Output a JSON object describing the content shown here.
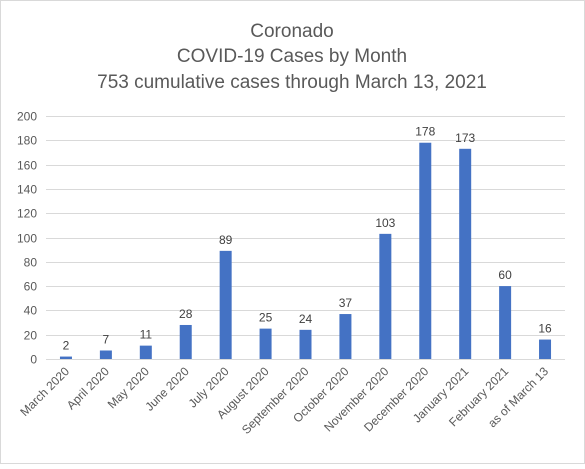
{
  "chart_data": {
    "type": "bar",
    "title_lines": [
      "Coronado",
      "COVID-19 Cases by Month",
      "753 cumulative cases through March 13, 2021"
    ],
    "categories": [
      "March 2020",
      "April 2020",
      "May 2020",
      "June 2020",
      "July 2020",
      "August 2020",
      "September 2020",
      "October 2020",
      "November 2020",
      "December 2020",
      "January 2021",
      "February 2021",
      "as of March 13"
    ],
    "values": [
      2,
      7,
      11,
      28,
      89,
      25,
      24,
      37,
      103,
      178,
      173,
      60,
      16
    ],
    "ylim": [
      0,
      200
    ],
    "yticks": [
      0,
      20,
      40,
      60,
      80,
      100,
      120,
      140,
      160,
      180,
      200
    ],
    "grid": true,
    "bar_color": "#4472C4",
    "data_labels": true,
    "legend": "none"
  }
}
